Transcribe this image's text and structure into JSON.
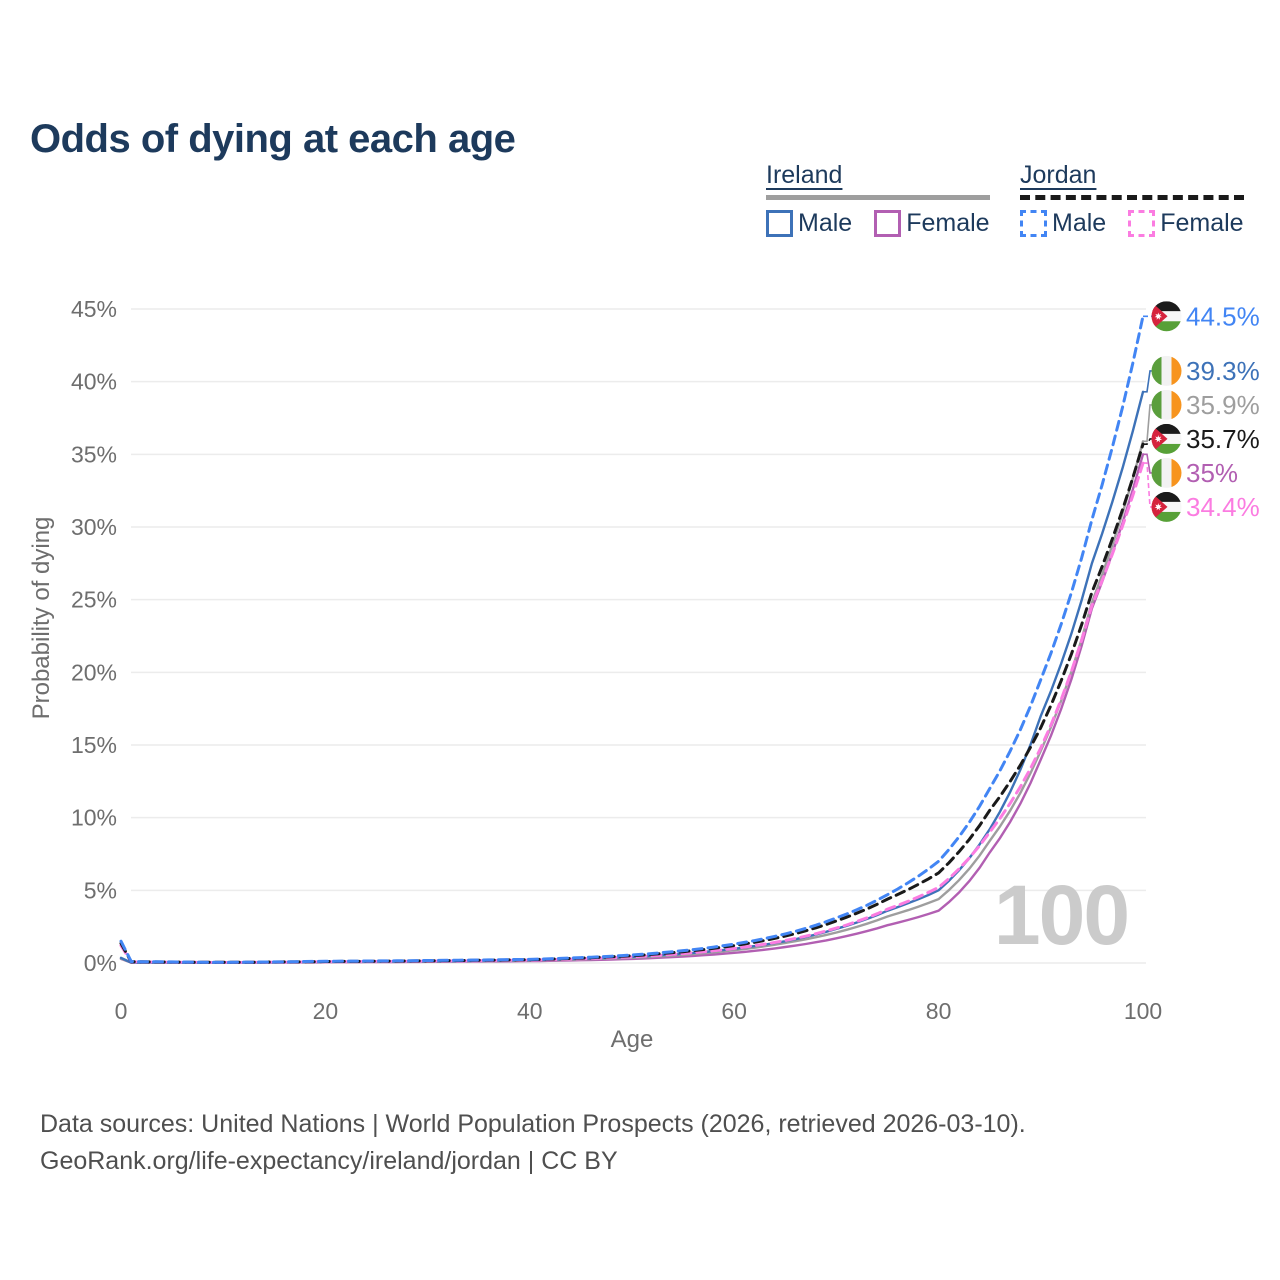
{
  "title": "Odds of dying at each age",
  "colors": {
    "title_text": "#1d3a5c",
    "axis_text": "#6e6e6e",
    "gridline": "#ececec",
    "watermark_text": "#cbcbcb",
    "footer_text": "#4f4f4f"
  },
  "legend": {
    "groups": [
      {
        "name": "Ireland",
        "line_color": "#9e9e9e",
        "line_style": "solid",
        "items": [
          {
            "label": "Male",
            "color": "#3d72b8",
            "style": "solid"
          },
          {
            "label": "Female",
            "color": "#b25fb2",
            "style": "solid"
          }
        ]
      },
      {
        "name": "Jordan",
        "line_color": "#1a1a1a",
        "line_style": "dashed",
        "items": [
          {
            "label": "Male",
            "color": "#4285f4",
            "style": "dashed"
          },
          {
            "label": "Female",
            "color": "#fb7ce1",
            "style": "dashed"
          }
        ]
      }
    ]
  },
  "chart_data": {
    "type": "line",
    "title": "Odds of dying at each age",
    "xlabel": "Age",
    "ylabel": "Probability of dying",
    "xlim": [
      0,
      100
    ],
    "ylim": [
      0,
      45
    ],
    "grid": "horizontal",
    "watermark": "100",
    "x_ticks": [
      {
        "value": 0,
        "label": "0"
      },
      {
        "value": 20,
        "label": "20"
      },
      {
        "value": 40,
        "label": "40"
      },
      {
        "value": 60,
        "label": "60"
      },
      {
        "value": 80,
        "label": "80"
      },
      {
        "value": 100,
        "label": "100"
      }
    ],
    "y_ticks": [
      {
        "value": 0,
        "label": "0%"
      },
      {
        "value": 5,
        "label": "5%"
      },
      {
        "value": 10,
        "label": "10%"
      },
      {
        "value": 15,
        "label": "15%"
      },
      {
        "value": 20,
        "label": "20%"
      },
      {
        "value": 25,
        "label": "25%"
      },
      {
        "value": 30,
        "label": "30%"
      },
      {
        "value": 35,
        "label": "35%"
      },
      {
        "value": 40,
        "label": "40%"
      },
      {
        "value": 45,
        "label": "45%"
      }
    ],
    "ages": [
      0,
      1,
      10,
      20,
      30,
      40,
      50,
      55,
      60,
      65,
      70,
      75,
      80,
      85,
      90,
      95,
      100
    ],
    "series": [
      {
        "name": "Jordan Male",
        "country": "jordan",
        "sex": "male",
        "color": "#4285f4",
        "dash": "dashed",
        "end_label": "44.5%",
        "values": [
          1.5,
          0.1,
          0.05,
          0.12,
          0.17,
          0.25,
          0.55,
          0.85,
          1.3,
          2.0,
          3.1,
          4.7,
          7.0,
          12.0,
          19.5,
          30.5,
          44.5
        ]
      },
      {
        "name": "Ireland Male",
        "country": "ireland",
        "sex": "male",
        "color": "#3d72b8",
        "dash": "solid",
        "end_label": "39.3%",
        "values": [
          0.35,
          0.03,
          0.02,
          0.08,
          0.12,
          0.2,
          0.42,
          0.64,
          0.98,
          1.5,
          2.35,
          3.6,
          5.0,
          9.2,
          17.0,
          27.5,
          39.3
        ]
      },
      {
        "name": "Ireland Both sexes",
        "country": "ireland",
        "sex": "both",
        "color": "#9e9e9e",
        "dash": "solid",
        "end_label": "35.9%",
        "values": [
          0.3,
          0.03,
          0.02,
          0.07,
          0.1,
          0.17,
          0.36,
          0.56,
          0.88,
          1.38,
          2.1,
          3.2,
          4.4,
          8.4,
          14.6,
          24.8,
          35.9
        ]
      },
      {
        "name": "Jordan Both sexes",
        "country": "jordan",
        "sex": "both",
        "color": "#1a1a1a",
        "dash": "dashed",
        "end_label": "35.7%",
        "values": [
          1.35,
          0.09,
          0.045,
          0.1,
          0.15,
          0.23,
          0.5,
          0.78,
          1.2,
          1.85,
          2.9,
          4.4,
          6.2,
          10.5,
          16.2,
          25.5,
          35.7
        ]
      },
      {
        "name": "Ireland Female",
        "country": "ireland",
        "sex": "female",
        "color": "#b25fb2",
        "dash": "solid",
        "end_label": "35%",
        "values": [
          0.28,
          0.02,
          0.015,
          0.05,
          0.08,
          0.13,
          0.28,
          0.45,
          0.7,
          1.1,
          1.7,
          2.6,
          3.6,
          7.6,
          14.0,
          24.4,
          35.0
        ]
      },
      {
        "name": "Jordan Female",
        "country": "jordan",
        "sex": "female",
        "color": "#fb7ce1",
        "dash": "dashed",
        "end_label": "34.4%",
        "values": [
          1.2,
          0.08,
          0.04,
          0.09,
          0.13,
          0.2,
          0.42,
          0.65,
          1.0,
          1.55,
          2.4,
          3.7,
          5.2,
          9.0,
          14.8,
          24.6,
          34.4
        ]
      }
    ]
  },
  "flag_colors": {
    "ireland": {
      "green": "#5a9e3c",
      "white": "#f2f2f2",
      "orange": "#f7941e"
    },
    "jordan": {
      "black": "#1b1b1b",
      "white": "#f7f7f7",
      "green": "#57a037",
      "red": "#d6233d",
      "star": "#ffffff"
    }
  },
  "footer": {
    "line1": "Data sources: United Nations | World Population Prospects (2026, retrieved 2026-03-10).",
    "line2": "GeoRank.org/life-expectancy/ireland/jordan | CC BY"
  }
}
